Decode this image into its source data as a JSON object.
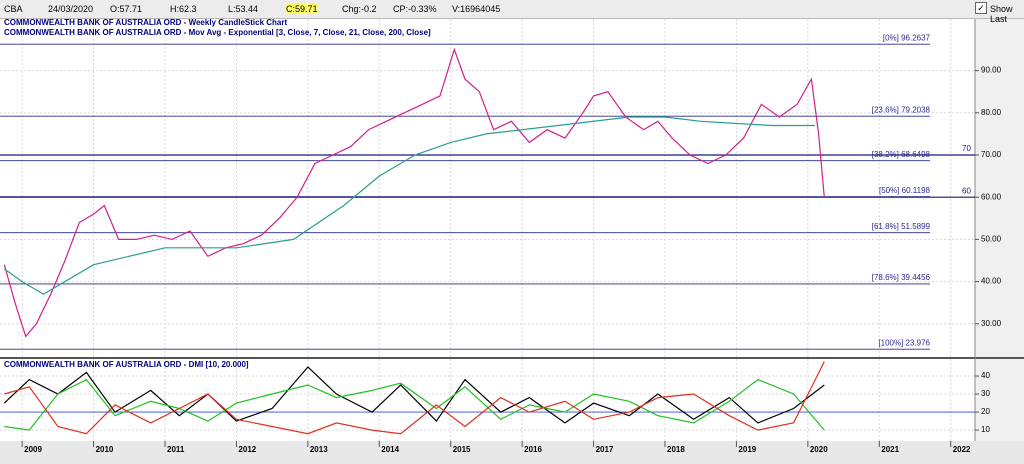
{
  "header": {
    "items": [
      "CBA",
      "24/03/2020",
      "O:57.71",
      "H:62.3",
      "L:53.44",
      "C:59.71",
      "Chg:-0.2",
      "CP:-0.33%",
      "V:16964045"
    ],
    "show_last": "Show Last"
  },
  "chart_data": [
    {
      "type": "line",
      "title": "COMMONWEALTH BANK OF AUSTRALIA ORD - Weekly CandleStick Chart",
      "subtitle": "COMMONWEALTH BANK OF AUSTRALIA ORD - Mov Avg - Exponential [3, Close, 7, Close, 21, Close, 200, Close]",
      "xlim": [
        2008.69,
        2022.34
      ],
      "xticks": [
        2009,
        2010,
        2011,
        2012,
        2013,
        2014,
        2015,
        2016,
        2017,
        2018,
        2019,
        2020,
        2021,
        2022
      ],
      "ylim": [
        22.6,
        102
      ],
      "yticks": [
        {
          "value": 30,
          "label": "30.00"
        },
        {
          "value": 40,
          "label": "40.00"
        },
        {
          "value": 50,
          "label": "50.00"
        },
        {
          "value": 60,
          "label": "60.00"
        },
        {
          "value": 70,
          "label": "70.00"
        },
        {
          "value": 80,
          "label": "80.00"
        },
        {
          "value": 90,
          "label": "90.00"
        }
      ],
      "grid": true,
      "series": [
        {
          "color": "#d0208a",
          "x": [
            2008.75,
            2008.9,
            2009.05,
            2009.2,
            2009.4,
            2009.6,
            2009.8,
            2010.0,
            2010.15,
            2010.35,
            2010.6,
            2010.85,
            2011.1,
            2011.35,
            2011.6,
            2011.85,
            2012.1,
            2012.35,
            2012.6,
            2012.85,
            2013.1,
            2013.35,
            2013.6,
            2013.85,
            2014.1,
            2014.35,
            2014.6,
            2014.85,
            2015.05,
            2015.2,
            2015.4,
            2015.6,
            2015.85,
            2016.1,
            2016.35,
            2016.6,
            2016.85,
            2017.0,
            2017.2,
            2017.45,
            2017.7,
            2017.9,
            2018.1,
            2018.35,
            2018.6,
            2018.85,
            2019.1,
            2019.35,
            2019.6,
            2019.85,
            2020.05,
            2020.15,
            2020.23
          ],
          "values": [
            44,
            35,
            27,
            30,
            37,
            45,
            54,
            56,
            58,
            50,
            50,
            51,
            50,
            52,
            46,
            48,
            49,
            51,
            55,
            60,
            68,
            70,
            72,
            76,
            78,
            80,
            82,
            84,
            95,
            88,
            85,
            76,
            78,
            73,
            76,
            74,
            80,
            84,
            85,
            79,
            76,
            78,
            74,
            70,
            68,
            70,
            74,
            82,
            79,
            82,
            88,
            75,
            60
          ]
        },
        {
          "color": "#2a9d8f",
          "x": [
            2008.75,
            2009.0,
            2009.3,
            2010.0,
            2011.0,
            2012.0,
            2012.8,
            2013.5,
            2014.0,
            2014.5,
            2015.0,
            2015.5,
            2016.5,
            2017.5,
            2018.0,
            2018.5,
            2019.5,
            2020.1
          ],
          "values": [
            43,
            40,
            37,
            44,
            48,
            48,
            50,
            58,
            65,
            70,
            73,
            75,
            77,
            79,
            79,
            78,
            77,
            77
          ]
        }
      ],
      "levels": [
        {
          "value": 96.2637,
          "label": "[0%] 96.2637"
        },
        {
          "value": 79.2038,
          "label": "[23.6%] 79.2038"
        },
        {
          "value": 68.6498,
          "label": "[38.2%] 68.6498"
        },
        {
          "value": 60.1198,
          "label": "[50%] 60.1198"
        },
        {
          "value": 51.5899,
          "label": "[61.8%] 51.5899"
        },
        {
          "value": 39.4456,
          "label": "[78.6%] 39.4456"
        },
        {
          "value": 23.976,
          "label": "[100%] 23.976"
        }
      ],
      "hlines": [
        70,
        60
      ]
    },
    {
      "type": "line",
      "title": "COMMONWEALTH BANK OF AUSTRALIA ORD - DMI [10, 20.000]",
      "ylim": [
        5.6,
        48.9
      ],
      "yticks": [
        10,
        20,
        30,
        40
      ],
      "hlines": [
        20
      ],
      "series": [
        {
          "color": "#000000",
          "x": [
            2008.75,
            2009.1,
            2009.5,
            2009.9,
            2010.3,
            2010.8,
            2011.2,
            2011.6,
            2012.0,
            2012.5,
            2013.0,
            2013.4,
            2013.9,
            2014.3,
            2014.8,
            2015.2,
            2015.7,
            2016.1,
            2016.6,
            2017.0,
            2017.5,
            2017.9,
            2018.4,
            2018.9,
            2019.3,
            2019.8,
            2020.23
          ],
          "values": [
            25,
            38,
            30,
            42,
            20,
            32,
            18,
            30,
            15,
            22,
            45,
            30,
            20,
            35,
            15,
            38,
            20,
            28,
            14,
            25,
            18,
            30,
            16,
            28,
            14,
            22,
            35
          ]
        },
        {
          "color": "#22c022",
          "x": [
            2008.75,
            2009.1,
            2009.5,
            2009.9,
            2010.3,
            2010.8,
            2011.2,
            2011.6,
            2012.0,
            2012.5,
            2013.0,
            2013.4,
            2013.9,
            2014.3,
            2014.8,
            2015.2,
            2015.7,
            2016.1,
            2016.6,
            2017.0,
            2017.5,
            2017.9,
            2018.4,
            2018.9,
            2019.3,
            2019.8,
            2020.23
          ],
          "values": [
            12,
            10,
            30,
            38,
            18,
            26,
            22,
            15,
            25,
            30,
            35,
            28,
            32,
            36,
            22,
            34,
            16,
            24,
            20,
            30,
            26,
            18,
            14,
            26,
            38,
            30,
            10
          ]
        },
        {
          "color": "#e03020",
          "x": [
            2008.75,
            2009.1,
            2009.5,
            2009.9,
            2010.3,
            2010.8,
            2011.2,
            2011.6,
            2012.0,
            2012.5,
            2013.0,
            2013.4,
            2013.9,
            2014.3,
            2014.8,
            2015.2,
            2015.7,
            2016.1,
            2016.6,
            2017.0,
            2017.5,
            2017.9,
            2018.4,
            2018.9,
            2019.3,
            2019.8,
            2020.23
          ],
          "values": [
            30,
            34,
            12,
            8,
            24,
            14,
            22,
            30,
            16,
            12,
            8,
            14,
            10,
            8,
            24,
            12,
            28,
            20,
            26,
            16,
            20,
            28,
            30,
            18,
            10,
            14,
            48
          ]
        }
      ]
    }
  ]
}
